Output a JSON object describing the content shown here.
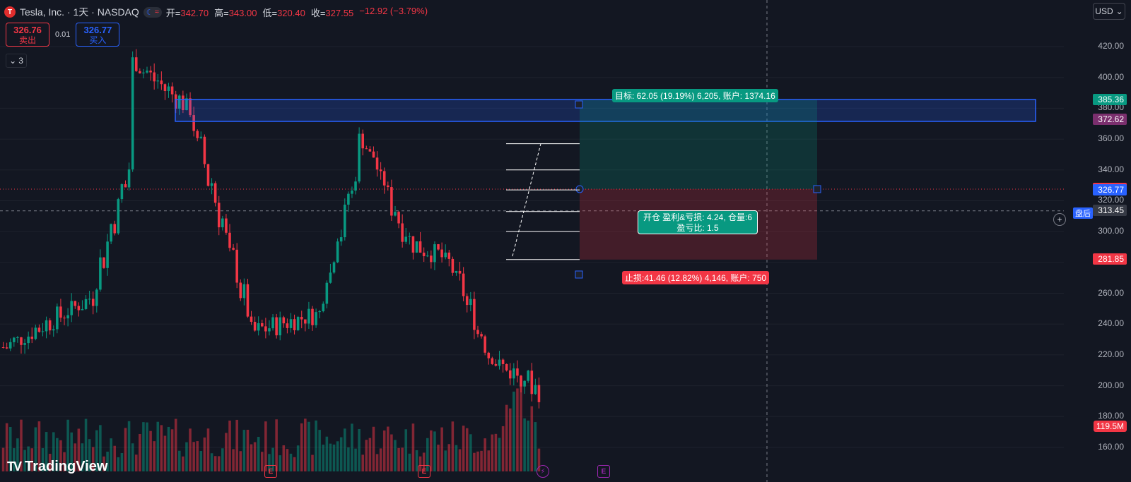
{
  "header": {
    "logo": "T",
    "symbol": "Tesla, Inc. · 1天 · NASDAQ",
    "mode_icons": [
      "☾",
      "≈"
    ],
    "ohlc": [
      {
        "label": "开=",
        "value": "342.70"
      },
      {
        "label": "高=",
        "value": "343.00"
      },
      {
        "label": "低=",
        "value": "320.40"
      },
      {
        "label": "收=",
        "value": "327.55"
      },
      {
        "label": "",
        "value": "−12.92 (−3.79%)"
      }
    ]
  },
  "trade": {
    "sell_price": "326.76",
    "sell_label": "卖出",
    "spread": "0.01",
    "buy_price": "326.77",
    "buy_label": "买入"
  },
  "collapse": {
    "count": "3"
  },
  "currency": "USD",
  "brand": "TradingView",
  "labels": {
    "target": "目标: 62.05 (19.19%) 6,205, 账户: 1374.16",
    "stop": "止损:41.46 (12.82%) 4,146, 账户: 750",
    "center_line1": "开仓 盈利&亏损: 4.24, 仓量:6",
    "center_line2": "盈亏比: 1.5",
    "after_hours": "盘后"
  },
  "price_tags": [
    {
      "text": "385.36",
      "color": "#089981",
      "price": 385.36
    },
    {
      "text": "372.62",
      "color": "#7b2f6e",
      "price": 372.62
    },
    {
      "text": "327.55",
      "color": "#f23645",
      "price": 327.55
    },
    {
      "text": "326.77",
      "color": "#2962ff",
      "price": 326.77
    },
    {
      "text": "313.45",
      "color": "#363a45",
      "price": 313.45
    },
    {
      "text": "281.85",
      "color": "#f23645",
      "price": 281.85
    }
  ],
  "volume_tag": "119.5M",
  "axis_ticks": [
    "420.00",
    "400.00",
    "380.00",
    "360.00",
    "340.00",
    "320.00",
    "300.00",
    "280.00",
    "260.00",
    "240.00",
    "220.00",
    "200.00",
    "180.00",
    "160.00"
  ],
  "colors": {
    "up": "#089981",
    "down": "#f23645",
    "bg": "#131722",
    "accent": "#2962ff"
  },
  "events": [
    {
      "kind": "E",
      "color": "#f23645"
    },
    {
      "kind": "E",
      "color": "#f23645"
    },
    {
      "kind": "⚡",
      "color": "#9c27b0"
    },
    {
      "kind": "E",
      "color": "#9c27b0"
    }
  ]
}
